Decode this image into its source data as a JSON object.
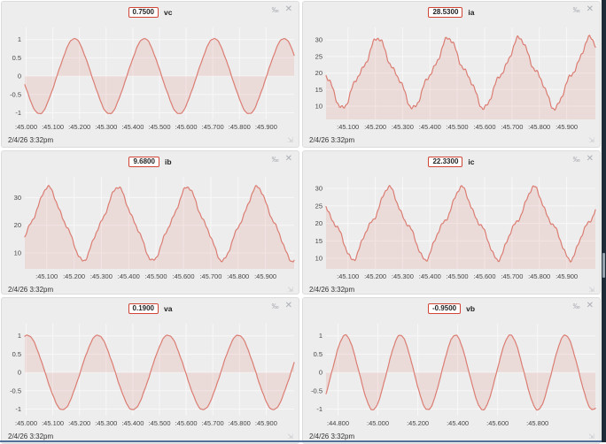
{
  "icons": {
    "permille": "‰",
    "close": "✕",
    "resize": "⇲"
  },
  "colors": {
    "line": "#db7d72",
    "fill": "rgba(217,122,112,0.16)",
    "grid": "#f8f8f9",
    "badge_border": "#cf4536",
    "panel_bg": "#ededee"
  },
  "chart_data": [
    {
      "type": "line",
      "label": "vc",
      "display_value": "0.7500",
      "timestamp": "2/4/26 3:32pm",
      "fill_to": "zero",
      "y_ticks": [
        1,
        0.5,
        0,
        -0.5,
        -1
      ],
      "y_range": [
        -1.18,
        1.33
      ],
      "x_range": [
        44.995,
        46.005
      ],
      "x_tick_times": [
        45.0,
        45.1,
        45.2,
        45.3,
        45.4,
        45.5,
        45.6,
        45.7,
        45.8,
        45.9
      ],
      "x_tick_labels": [
        ":45.000",
        ":45.100",
        ":45.200",
        ":45.300",
        ":45.400",
        ":45.500",
        ":45.600",
        ":45.700",
        ":45.800",
        ":45.900"
      ],
      "wave": {
        "shape": "sine",
        "mean": 0,
        "amplitude": 1,
        "period": 0.262,
        "t_of_max": 45.181,
        "harmonic3": 0.03,
        "noise": 0.015
      }
    },
    {
      "type": "line",
      "label": "ia",
      "display_value": "28.5300",
      "timestamp": "2/4/26 3:32pm",
      "fill_to": "bottom",
      "y_ticks": [
        30,
        25,
        20,
        15,
        10
      ],
      "y_range": [
        6.0,
        33.8
      ],
      "x_range": [
        45.02,
        46.005
      ],
      "x_tick_times": [
        45.1,
        45.2,
        45.3,
        45.4,
        45.5,
        45.6,
        45.7,
        45.8,
        45.9
      ],
      "x_tick_labels": [
        ":45.100",
        ":45.200",
        ":45.300",
        ":45.400",
        ":45.500",
        ":45.600",
        ":45.700",
        ":45.800",
        ":45.900"
      ],
      "wave": {
        "shape": "sine",
        "mean": 20,
        "amplitude": 9.2,
        "period": 0.259,
        "t_of_max": 45.209,
        "harmonic3": 1.5,
        "noise": 0.9
      }
    },
    {
      "type": "line",
      "label": "ib",
      "display_value": "9.6800",
      "timestamp": "2/4/26 3:32pm",
      "fill_to": "bottom",
      "y_ticks": [
        30,
        20,
        10
      ],
      "y_range": [
        4.2,
        37.5
      ],
      "x_range": [
        45.02,
        46.005
      ],
      "x_tick_times": [
        45.1,
        45.2,
        45.3,
        45.4,
        45.5,
        45.6,
        45.7,
        45.8,
        45.9
      ],
      "x_tick_labels": [
        ":45.100",
        ":45.200",
        ":45.300",
        ":45.400",
        ":45.500",
        ":45.600",
        ":45.700",
        ":45.800",
        ":45.900"
      ],
      "wave": {
        "shape": "sine",
        "mean": 20.5,
        "amplitude": 12,
        "period": 0.255,
        "t_of_max": 45.105,
        "harmonic3": 1.4,
        "noise": 0.7
      }
    },
    {
      "type": "line",
      "label": "ic",
      "display_value": "22.3300",
      "timestamp": "2/4/26 3:32pm",
      "fill_to": "bottom",
      "y_ticks": [
        30,
        25,
        20,
        15,
        10
      ],
      "y_range": [
        7.0,
        33.3
      ],
      "x_range": [
        45.02,
        46.005
      ],
      "x_tick_times": [
        45.1,
        45.2,
        45.3,
        45.4,
        45.5,
        45.6,
        45.7,
        45.8,
        45.9
      ],
      "x_tick_labels": [
        ":45.100",
        ":45.200",
        ":45.300",
        ":45.400",
        ":45.500",
        ":45.600",
        ":45.700",
        ":45.800",
        ":45.900"
      ],
      "wave": {
        "shape": "sine",
        "mean": 20,
        "amplitude": 8.9,
        "period": 0.265,
        "t_of_max": 45.25,
        "harmonic3": 1.5,
        "noise": 0.7
      }
    },
    {
      "type": "line",
      "label": "va",
      "display_value": "0.1900",
      "timestamp": "2/4/26 3:32pm",
      "fill_to": "zero",
      "y_ticks": [
        1,
        0.5,
        0,
        -0.5,
        -1
      ],
      "y_range": [
        -1.18,
        1.33
      ],
      "x_range": [
        44.995,
        46.005
      ],
      "x_tick_times": [
        45.0,
        45.1,
        45.2,
        45.3,
        45.4,
        45.5,
        45.6,
        45.7,
        45.8,
        45.9
      ],
      "x_tick_labels": [
        ":45.000",
        ":45.100",
        ":45.200",
        ":45.300",
        ":45.400",
        ":45.500",
        ":45.600",
        ":45.700",
        ":45.800",
        ":45.900"
      ],
      "wave": {
        "shape": "sine",
        "mean": 0,
        "amplitude": 1,
        "period": 0.2635,
        "t_of_max": 45.005,
        "harmonic3": 0.02,
        "noise": 0.015
      }
    },
    {
      "type": "line",
      "label": "vb",
      "display_value": "-0.9500",
      "timestamp": "2/4/26 3:32pm",
      "fill_to": "zero",
      "y_ticks": [
        1,
        0.5,
        0,
        -0.5,
        -1
      ],
      "y_range": [
        -1.18,
        1.33
      ],
      "x_range": [
        44.74,
        46.09
      ],
      "x_tick_times": [
        44.8,
        45.0,
        45.2,
        45.4,
        45.6,
        45.8
      ],
      "x_tick_labels": [
        ":44.800",
        ":45.000",
        ":45.200",
        ":45.400",
        ":45.600",
        ":45.800"
      ],
      "wave": {
        "shape": "sine",
        "mean": 0,
        "amplitude": 1,
        "period": 0.2755,
        "t_of_max": 44.837,
        "harmonic3": 0.02,
        "noise": 0.015
      }
    }
  ]
}
